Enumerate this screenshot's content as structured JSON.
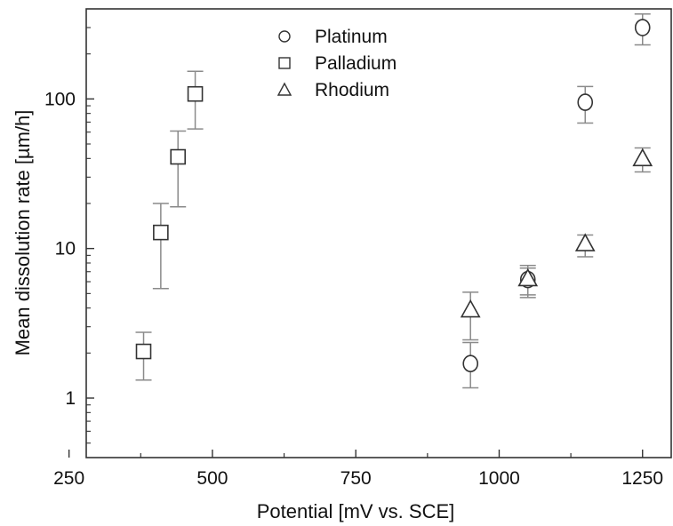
{
  "chart_data": {
    "type": "scatter",
    "xlabel": "Potential [mV vs. SCE]",
    "ylabel": "Mean dissolution rate [µm/h]",
    "xlim": [
      280,
      1300
    ],
    "ylim": [
      0.4,
      400
    ],
    "yscale": "log",
    "x_ticks": [
      250,
      500,
      750,
      1000,
      1250
    ],
    "x_tick_labels": [
      "250",
      "500",
      "750",
      "1000",
      "1250"
    ],
    "y_ticks": [
      1,
      10,
      100
    ],
    "y_tick_labels": [
      "1",
      "10",
      "100"
    ],
    "grid": false,
    "legend_position": "top-center",
    "error_bar_color": "#8a8a8a",
    "marker_color": "#333333",
    "series": [
      {
        "name": "Platinum",
        "marker": "circle",
        "points": [
          {
            "x": 950,
            "y": 1.7,
            "y_low": 1.17,
            "y_high": 2.35
          },
          {
            "x": 1050,
            "y": 6.2,
            "y_low": 4.9,
            "y_high": 7.4
          },
          {
            "x": 1150,
            "y": 95,
            "y_low": 69,
            "y_high": 121
          },
          {
            "x": 1250,
            "y": 300,
            "y_low": 230,
            "y_high": 370
          }
        ]
      },
      {
        "name": "Palladium",
        "marker": "square",
        "points": [
          {
            "x": 380,
            "y": 2.05,
            "y_low": 1.32,
            "y_high": 2.75
          },
          {
            "x": 410,
            "y": 12.8,
            "y_low": 5.4,
            "y_high": 20
          },
          {
            "x": 440,
            "y": 41,
            "y_low": 19,
            "y_high": 61
          },
          {
            "x": 470,
            "y": 108,
            "y_low": 63,
            "y_high": 153
          }
        ]
      },
      {
        "name": "Rhodium",
        "marker": "triangle",
        "points": [
          {
            "x": 950,
            "y": 3.9,
            "y_low": 2.45,
            "y_high": 5.1
          },
          {
            "x": 1050,
            "y": 6.3,
            "y_low": 4.7,
            "y_high": 7.7
          },
          {
            "x": 1150,
            "y": 10.8,
            "y_low": 8.8,
            "y_high": 12.3
          },
          {
            "x": 1250,
            "y": 40,
            "y_low": 32.5,
            "y_high": 47
          }
        ]
      }
    ]
  }
}
